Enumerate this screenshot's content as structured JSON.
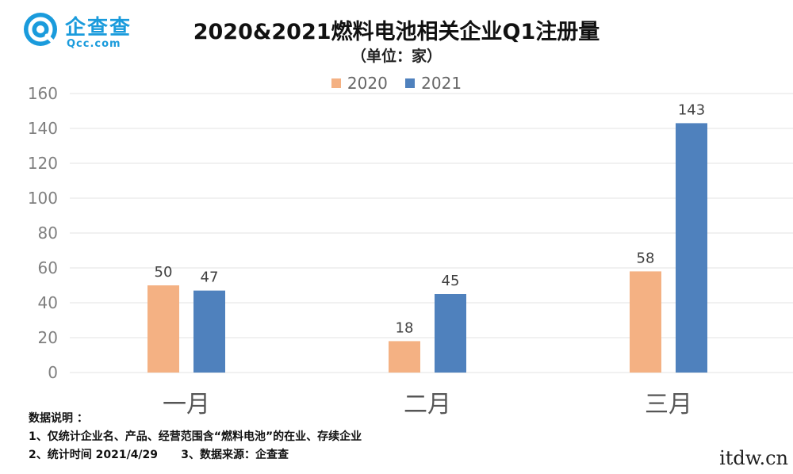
{
  "logo": {
    "name": "企查查",
    "domain": "Qcc.com"
  },
  "colors": {
    "series_2020": "#F4B183",
    "series_2021": "#4F81BD",
    "grid": "#e3e3e3",
    "axis_text": "#7f7f7f",
    "logo": "#1a9bdc"
  },
  "chart_data": {
    "type": "bar",
    "title": "2020&2021燃料电池相关企业Q1注册量",
    "subtitle": "（单位：家）",
    "categories": [
      "一月",
      "二月",
      "三月"
    ],
    "series": [
      {
        "name": "2020",
        "values": [
          50,
          18,
          58
        ]
      },
      {
        "name": "2021",
        "values": [
          47,
          45,
          143
        ]
      }
    ],
    "ylim": [
      0,
      160
    ],
    "yticks": [
      0,
      20,
      40,
      60,
      80,
      100,
      120,
      140,
      160
    ],
    "grid": true,
    "legend": "top-center"
  },
  "notes": {
    "heading": "数据说明 ：",
    "line1": "1、仅统计企业名、产品、经营范围含“燃料电池”的在业、存续企业",
    "line2": "2、统计时间 2021/4/29      3、数据来源：企查查"
  },
  "watermark": "itdw.cn"
}
